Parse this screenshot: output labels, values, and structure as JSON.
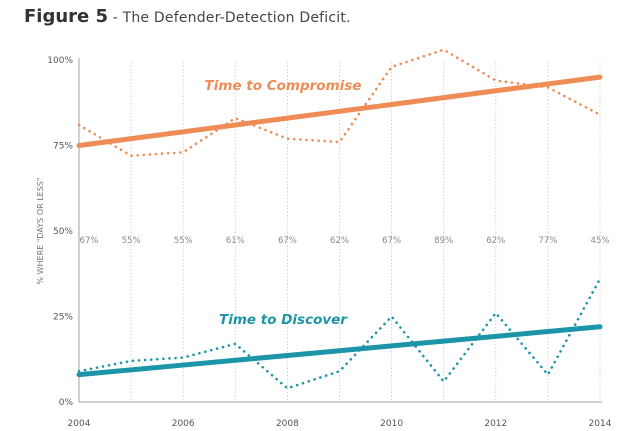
{
  "figure": {
    "number_label": "Figure 5",
    "separator": " - ",
    "subtitle": "The Defender-Detection Deficit."
  },
  "chart_data": {
    "type": "line",
    "title": "The Defender-Detection Deficit.",
    "ylabel": "% WHERE \"DAYS OR LESS\"",
    "xlabel": "",
    "x": [
      2004,
      2005,
      2006,
      2007,
      2008,
      2009,
      2010,
      2011,
      2012,
      2013,
      2014
    ],
    "xticks": [
      "2004",
      "2006",
      "2008",
      "2010",
      "2012",
      "2014"
    ],
    "yticks": [
      "100%",
      "75%",
      "50%",
      "25%",
      "0%"
    ],
    "ylim": [
      0,
      100
    ],
    "grid": "vertical dotted lines at each year",
    "series": [
      {
        "name": "Time to Compromise",
        "style": "dotted",
        "color": "#ef8c55",
        "values": [
          81,
          72,
          73,
          83,
          77,
          76,
          98,
          103,
          94,
          92,
          84
        ]
      },
      {
        "name": "Time to Compromise",
        "style": "solid trend",
        "color": "#ef8c55",
        "values": [
          75,
          77,
          79,
          81,
          83,
          85,
          87,
          89,
          91,
          93,
          95
        ]
      },
      {
        "name": "Time to Discover",
        "style": "dotted",
        "color": "#1c95a8",
        "values": [
          9,
          12,
          13,
          17,
          4,
          9,
          25,
          6,
          26,
          8,
          36
        ]
      },
      {
        "name": "Time to Discover",
        "style": "solid trend",
        "color": "#1c95a8",
        "values": [
          8,
          9.4,
          10.8,
          12.2,
          13.6,
          15,
          16.4,
          17.8,
          19.2,
          20.6,
          22
        ]
      }
    ],
    "annotations": {
      "deficit_percentages": [
        "67%",
        "55%",
        "55%",
        "61%",
        "67%",
        "62%",
        "67%",
        "89%",
        "62%",
        "77%",
        "45%"
      ]
    },
    "series_labels": {
      "compromise": "Time to Compromise",
      "discover": "Time to Discover"
    }
  }
}
